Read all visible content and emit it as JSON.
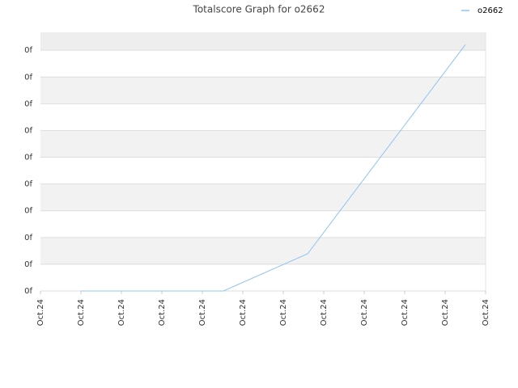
{
  "chart_data": {
    "type": "line",
    "title": "Totalscore Graph for o2662",
    "x": [
      1,
      4.52,
      6.6,
      10.5
    ],
    "series": [
      {
        "name": "o2662",
        "color": "#90c4f0",
        "values": [
          0,
          0,
          1.39,
          9.21
        ]
      }
    ],
    "xlim": [
      0,
      11
    ],
    "xticks": [
      {
        "value": 0,
        "label": "Oct.24"
      },
      {
        "value": 1,
        "label": "Oct.24"
      },
      {
        "value": 2,
        "label": "Oct.24"
      },
      {
        "value": 3,
        "label": "Oct.24"
      },
      {
        "value": 4,
        "label": "Oct.24"
      },
      {
        "value": 5,
        "label": "Oct.24"
      },
      {
        "value": 6,
        "label": "Oct.24"
      },
      {
        "value": 7,
        "label": "Oct.24"
      },
      {
        "value": 8,
        "label": "Oct.24"
      },
      {
        "value": 9,
        "label": "Oct.24"
      },
      {
        "value": 10,
        "label": "Oct.24"
      },
      {
        "value": 11,
        "label": "Oct.24"
      }
    ],
    "ylim": [
      0,
      9.67
    ],
    "yticks": [
      {
        "value": 0,
        "label": "0f"
      },
      {
        "value": 1,
        "label": "0f"
      },
      {
        "value": 2,
        "label": "0f"
      },
      {
        "value": 3,
        "label": "0f"
      },
      {
        "value": 4,
        "label": "0f"
      },
      {
        "value": 5,
        "label": "0f"
      },
      {
        "value": 6,
        "label": "0f"
      },
      {
        "value": 7,
        "label": "0f"
      },
      {
        "value": 8,
        "label": "0f"
      },
      {
        "value": 9,
        "label": "0f"
      }
    ],
    "grid": true,
    "legend": "top-right"
  }
}
